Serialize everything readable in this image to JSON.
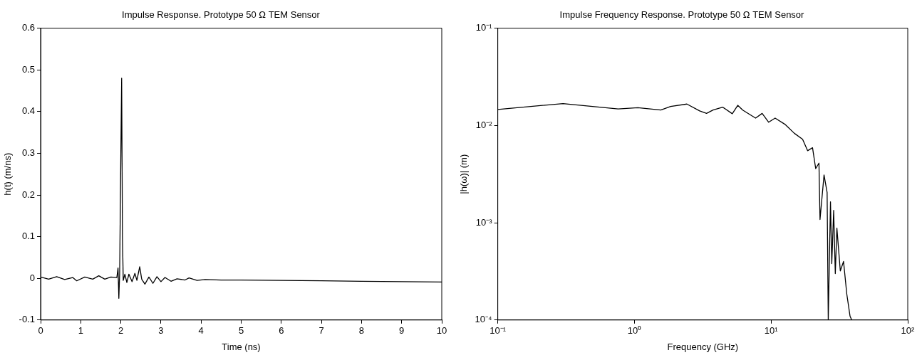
{
  "chart_data": [
    {
      "type": "line",
      "title": "Impulse Response. Prototype 50 Ω TEM Sensor",
      "xlabel": "Time (ns)",
      "ylabel": "h(t) (m/ns)",
      "xlim": [
        0,
        10
      ],
      "xticks": [
        0,
        1,
        2,
        3,
        4,
        5,
        6,
        7,
        8,
        9,
        10
      ],
      "ylim": [
        -0.1,
        0.6
      ],
      "yticks": [
        -0.1,
        0,
        0.1,
        0.2,
        0.3,
        0.4,
        0.5,
        0.6
      ],
      "series": [
        {
          "color": "#000000",
          "x": [
            0,
            0.2,
            0.4,
            0.6,
            0.8,
            0.9,
            1.1,
            1.3,
            1.45,
            1.6,
            1.75,
            1.9,
            1.93,
            1.95,
            1.97,
            1.99,
            2.02,
            2.04,
            2.06,
            2.1,
            2.15,
            2.2,
            2.28,
            2.35,
            2.4,
            2.47,
            2.52,
            2.6,
            2.7,
            2.8,
            2.9,
            3.0,
            3.1,
            3.25,
            3.4,
            3.6,
            3.7,
            3.9,
            4.1,
            4.5,
            5,
            6,
            7,
            8,
            9,
            10
          ],
          "values": [
            0.003,
            -0.002,
            0.004,
            -0.003,
            0.002,
            -0.006,
            0.003,
            -0.002,
            0.006,
            -0.002,
            0.003,
            0.002,
            0.025,
            -0.048,
            0.01,
            0.2,
            0.48,
            0.1,
            -0.005,
            0.01,
            -0.01,
            0.01,
            -0.008,
            0.012,
            -0.005,
            0.028,
            -0.002,
            -0.014,
            0.003,
            -0.012,
            0.004,
            -0.008,
            0.002,
            -0.007,
            -0.001,
            -0.004,
            0.001,
            -0.005,
            -0.003,
            -0.004,
            -0.004,
            -0.005,
            -0.006,
            -0.007,
            -0.008,
            -0.009
          ]
        }
      ]
    },
    {
      "type": "line",
      "title": "Impulse Frequency Response. Prototype 50 Ω TEM Sensor",
      "xlabel": "Frequency (GHz)",
      "ylabel": "|h(ω)| (m)",
      "log": "xy",
      "xlim": [
        0.1,
        100
      ],
      "xticks": [
        {
          "value": 0.1,
          "label": "10⁻¹"
        },
        {
          "value": 1,
          "label": "10⁰"
        },
        {
          "value": 10,
          "label": "10¹"
        },
        {
          "value": 100,
          "label": "10²"
        }
      ],
      "ylim": [
        0.0001,
        0.1
      ],
      "yticks": [
        {
          "value": 0.0001,
          "label": "10⁻⁴"
        },
        {
          "value": 0.001,
          "label": "10⁻³"
        },
        {
          "value": 0.01,
          "label": "10⁻²"
        },
        {
          "value": 0.1,
          "label": "10⁻¹"
        }
      ],
      "series": [
        {
          "color": "#000000",
          "x": [
            0.1,
            0.3,
            0.76,
            1.06,
            1.56,
            1.84,
            2.42,
            3.0,
            3.37,
            3.76,
            4.43,
            5.2,
            5.7,
            6.2,
            7.7,
            8.6,
            9.6,
            10.7,
            12.6,
            14.8,
            17,
            18.5,
            20.1,
            21.2,
            22.4,
            22.8,
            24.4,
            25.7,
            26.2,
            27.2,
            27.8,
            28.7,
            29.5,
            30.3,
            32.1,
            33.9,
            35.8,
            37.8,
            38.9
          ],
          "values": [
            0.0146,
            0.0168,
            0.0148,
            0.0152,
            0.0144,
            0.0157,
            0.0166,
            0.0141,
            0.0133,
            0.0144,
            0.0154,
            0.0132,
            0.0161,
            0.0144,
            0.0119,
            0.0133,
            0.0108,
            0.0119,
            0.0103,
            0.0083,
            0.0072,
            0.0055,
            0.0059,
            0.0036,
            0.0041,
            0.00108,
            0.0031,
            0.00204,
            0.0001,
            0.00164,
            0.00038,
            0.00134,
            0.0003,
            0.00088,
            0.00032,
            0.0004,
            0.000185,
            0.00011,
            0.0001
          ]
        }
      ]
    }
  ]
}
